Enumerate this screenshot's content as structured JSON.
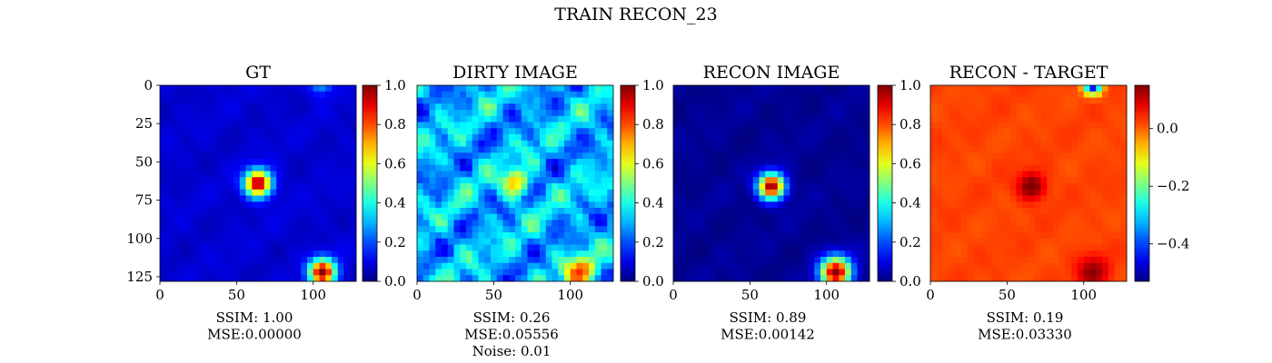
{
  "figure": {
    "title": "TRAIN RECON_23"
  },
  "panels": [
    {
      "id": "gt",
      "title": "GT",
      "metrics": [
        "SSIM: 1.00",
        "MSE:0.00000"
      ],
      "colorbar": {
        "min": 0.0,
        "max": 1.0,
        "ticks": [
          0.0,
          0.2,
          0.4,
          0.6,
          0.8,
          1.0
        ],
        "tick_labels": [
          "0.0",
          "0.2",
          "0.4",
          "0.6",
          "0.8",
          "1.0"
        ]
      },
      "blobs": [
        {
          "x": 64,
          "y": 64,
          "sigma": 6,
          "value": 1.0
        },
        {
          "x": 106,
          "y": 122,
          "sigma": 6,
          "value": 1.0
        },
        {
          "x": 105,
          "y": -2,
          "sigma": 5,
          "value": 0.35
        }
      ],
      "base_value": 0.08,
      "show_y_ticks": true
    },
    {
      "id": "dirty",
      "title": "DIRTY IMAGE",
      "metrics": [
        "SSIM: 0.26",
        "MSE:0.05556",
        "Noise: 0.01"
      ],
      "colorbar": {
        "min": 0.0,
        "max": 1.0,
        "ticks": [
          0.0,
          0.2,
          0.4,
          0.6,
          0.8,
          1.0
        ],
        "tick_labels": [
          "0.0",
          "0.2",
          "0.4",
          "0.6",
          "0.8",
          "1.0"
        ]
      },
      "blobs": [
        {
          "x": 64,
          "y": 64,
          "sigma": 6,
          "value": 0.7
        },
        {
          "x": 106,
          "y": 122,
          "sigma": 7,
          "value": 0.75
        }
      ],
      "base_value": 0.3,
      "noisy": true,
      "show_y_ticks": false
    },
    {
      "id": "recon",
      "title": "RECON IMAGE",
      "metrics": [
        "SSIM: 0.89",
        "MSE:0.00142"
      ],
      "colorbar": {
        "min": 0.0,
        "max": 1.0,
        "ticks": [
          0.0,
          0.2,
          0.4,
          0.6,
          0.8,
          1.0
        ],
        "tick_labels": [
          "0.0",
          "0.2",
          "0.4",
          "0.6",
          "0.8",
          "1.0"
        ]
      },
      "blobs": [
        {
          "x": 64,
          "y": 66,
          "sigma": 6,
          "value": 1.0
        },
        {
          "x": 106,
          "y": 122,
          "sigma": 7,
          "value": 1.0
        }
      ],
      "base_value": 0.02,
      "show_y_ticks": false
    },
    {
      "id": "residual",
      "title": "RECON - TARGET",
      "metrics": [
        "SSIM: 0.19",
        "MSE:0.03330"
      ],
      "colorbar": {
        "min": -0.53,
        "max": 0.15,
        "ticks": [
          0.0,
          -0.2,
          -0.4
        ],
        "tick_labels": [
          "0.0",
          "−0.2",
          "−0.4"
        ]
      },
      "blobs": [
        {
          "x": 66,
          "y": 66,
          "sigma": 6,
          "value": 0.15
        },
        {
          "x": 106,
          "y": 122,
          "sigma": 7,
          "value": 0.12
        },
        {
          "x": 106,
          "y": 0,
          "sigma": 4,
          "value": -0.5
        }
      ],
      "base_value": 0.02,
      "show_y_ticks": false
    }
  ],
  "chart_data": {
    "type": "heatmap",
    "title": "TRAIN RECON_23",
    "x_ticks": [
      0,
      50,
      100
    ],
    "y_ticks": [
      0,
      25,
      50,
      75,
      100,
      125
    ],
    "xlim": [
      0,
      128
    ],
    "ylim": [
      128,
      0
    ],
    "colormap": "jet"
  }
}
